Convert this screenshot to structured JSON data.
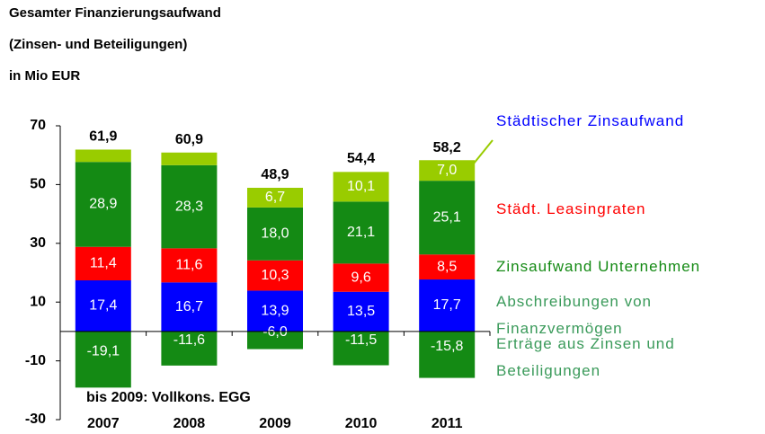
{
  "chart_data": {
    "type": "stacked_bar",
    "title": [
      "Gesamter Finanzierungsaufwand",
      "(Zinsen- und Beteiligungen)",
      "in Mio EUR"
    ],
    "annotation": "bis 2009: Vollkons. EGG",
    "categories": [
      "2007",
      "2008",
      "2009",
      "2010",
      "2011"
    ],
    "series": [
      {
        "name": "Städtischer Zinsaufwand",
        "color": "#0000ff",
        "label_color": "#0000ff",
        "values": [
          17.4,
          16.7,
          13.9,
          13.5,
          17.7
        ],
        "value_labels": [
          "17,4",
          "16,7",
          "13,9",
          "13,5",
          "17,7"
        ]
      },
      {
        "name": "Städt. Leasingraten",
        "color": "#ff0000",
        "label_color": "#ff0000",
        "values": [
          11.4,
          11.6,
          10.3,
          9.6,
          8.5
        ],
        "value_labels": [
          "11,4",
          "11,6",
          "10,3",
          "9,6",
          "8,5"
        ]
      },
      {
        "name": "Zinsaufwand Unternehmen",
        "color": "#148a14",
        "label_color": "#148a14",
        "values": [
          28.9,
          28.3,
          18.0,
          21.1,
          25.1
        ],
        "value_labels": [
          "28,9",
          "28,3",
          "18,0",
          "21,1",
          "25,1"
        ]
      },
      {
        "name": "Abschreibungen von Finanzvermögen",
        "color": "#99cc00",
        "label_color": "#3a9a5a",
        "values": [
          4.2,
          4.3,
          6.7,
          10.1,
          7.0
        ],
        "value_labels": [
          null,
          null,
          "6,7",
          "10,1",
          "7,0"
        ]
      },
      {
        "name": "Erträge aus Zinsen und Beteiligungen",
        "color": "#148a14",
        "label_color": "#3a9a5a",
        "values": [
          -19.1,
          -11.6,
          -6.0,
          -11.5,
          -15.8
        ],
        "value_labels": [
          "-19,1",
          "-11,6",
          "-6,0",
          "-11,5",
          "-15,8"
        ]
      }
    ],
    "totals": [
      61.9,
      60.9,
      48.9,
      54.4,
      58.2
    ],
    "total_labels": [
      "61,9",
      "60,9",
      "48,9",
      "54,4",
      "58,2"
    ],
    "ylim": [
      -30,
      70
    ],
    "yticks": [
      70,
      50,
      30,
      10,
      -10,
      -30
    ]
  }
}
